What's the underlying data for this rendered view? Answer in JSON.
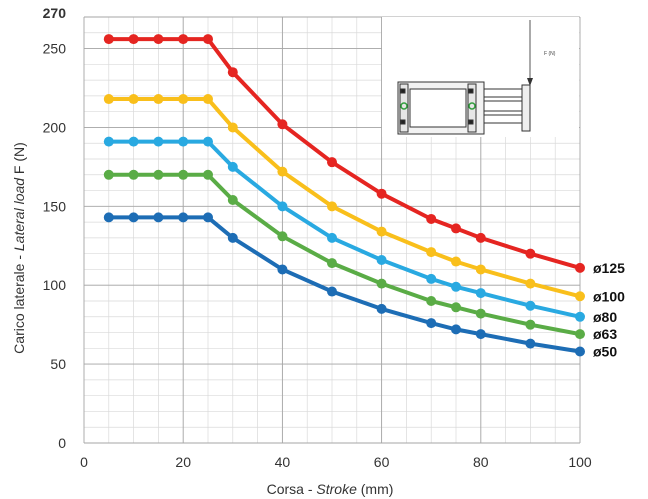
{
  "chart_data": {
    "type": "line",
    "xlabel_prefix": "Corsa - ",
    "xlabel_italic": "Stroke",
    "xlabel_suffix": " (mm)",
    "ylabel_prefix": "Carico laterale - ",
    "ylabel_italic": "Lateral load",
    "ylabel_suffix": " F (N)",
    "xlim": [
      0,
      100
    ],
    "ylim": [
      0,
      270
    ],
    "xticks": [
      0,
      20,
      40,
      60,
      80,
      100
    ],
    "yticks": [
      0,
      50,
      100,
      150,
      200,
      250,
      270
    ],
    "grid": true,
    "x": [
      5,
      10,
      15,
      20,
      25,
      30,
      40,
      50,
      60,
      70,
      75,
      80,
      90,
      100
    ],
    "series": [
      {
        "name": "ø125",
        "color": "#e52521",
        "values": [
          256,
          256,
          256,
          256,
          256,
          235,
          202,
          178,
          158,
          142,
          136,
          130,
          120,
          111
        ]
      },
      {
        "name": "ø100",
        "color": "#f9bf1b",
        "values": [
          218,
          218,
          218,
          218,
          218,
          200,
          172,
          150,
          134,
          121,
          115,
          110,
          101,
          93
        ]
      },
      {
        "name": "ø80",
        "color": "#29a9e1",
        "values": [
          191,
          191,
          191,
          191,
          191,
          175,
          150,
          130,
          116,
          104,
          99,
          95,
          87,
          80
        ]
      },
      {
        "name": "ø63",
        "color": "#5aac46",
        "values": [
          170,
          170,
          170,
          170,
          170,
          154,
          131,
          114,
          101,
          90,
          86,
          82,
          75,
          69
        ]
      },
      {
        "name": "ø50",
        "color": "#1d6db5",
        "values": [
          143,
          143,
          143,
          143,
          143,
          130,
          110,
          96,
          85,
          76,
          72,
          69,
          63,
          58
        ]
      }
    ],
    "inset": {
      "label": "F (N)",
      "icon": "cylinder-diagram"
    }
  }
}
